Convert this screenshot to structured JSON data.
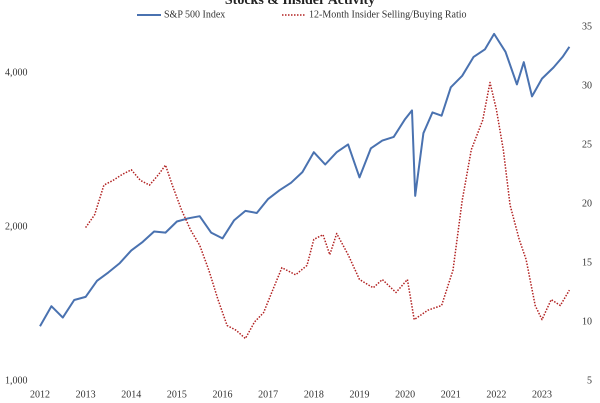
{
  "chart_data": {
    "type": "line",
    "title": "Stocks & Insider Activity",
    "xlim": [
      2011.9,
      2023.7
    ],
    "xticks": [
      2012,
      2013,
      2014,
      2015,
      2016,
      2017,
      2018,
      2019,
      2020,
      2021,
      2022,
      2023
    ],
    "ylim": [
      1000,
      4920
    ],
    "log_y": true,
    "yticks": [
      {
        "value": 1000,
        "label": "1,000"
      },
      {
        "value": 2000,
        "label": "2,000"
      },
      {
        "value": 4000,
        "label": "4,000"
      }
    ],
    "y2lim": [
      5,
      35
    ],
    "y2ticks": [
      5,
      10,
      15,
      20,
      25,
      30,
      35
    ],
    "grid": false,
    "series": [
      {
        "name": "S&P 500 Index",
        "color": "#4a72b0",
        "style": "solid",
        "x": [
          2012.0,
          2012.25,
          2012.5,
          2012.75,
          2013.0,
          2013.25,
          2013.5,
          2013.75,
          2014.0,
          2014.25,
          2014.5,
          2014.75,
          2015.0,
          2015.25,
          2015.5,
          2015.75,
          2016.0,
          2016.25,
          2016.5,
          2016.75,
          2017.0,
          2017.25,
          2017.5,
          2017.75,
          2018.0,
          2018.25,
          2018.5,
          2018.75,
          2019.0,
          2019.25,
          2019.5,
          2019.75,
          2020.0,
          2020.15,
          2020.22,
          2020.4,
          2020.6,
          2020.8,
          2021.0,
          2021.25,
          2021.5,
          2021.75,
          2021.95,
          2022.2,
          2022.45,
          2022.6,
          2022.78,
          2023.0,
          2023.25,
          2023.45,
          2023.6
        ],
        "values": [
          1280,
          1400,
          1330,
          1440,
          1460,
          1570,
          1630,
          1700,
          1800,
          1870,
          1960,
          1950,
          2050,
          2080,
          2100,
          1950,
          1900,
          2060,
          2150,
          2130,
          2270,
          2360,
          2440,
          2560,
          2800,
          2650,
          2800,
          2900,
          2500,
          2850,
          2950,
          3000,
          3250,
          3380,
          2300,
          3050,
          3350,
          3300,
          3750,
          3950,
          4300,
          4450,
          4770,
          4400,
          3800,
          4200,
          3600,
          3900,
          4100,
          4300,
          4500
        ]
      },
      {
        "name": "12-Month Insider Selling/Buying Ratio",
        "color": "#b22222",
        "style": "dotted",
        "axis": "y2",
        "x": [
          2013.0,
          2013.2,
          2013.4,
          2013.6,
          2013.8,
          2014.0,
          2014.2,
          2014.4,
          2014.6,
          2014.75,
          2014.9,
          2015.1,
          2015.3,
          2015.5,
          2015.7,
          2015.9,
          2016.1,
          2016.3,
          2016.5,
          2016.7,
          2016.9,
          2017.1,
          2017.3,
          2017.6,
          2017.85,
          2018.0,
          2018.2,
          2018.35,
          2018.5,
          2018.75,
          2019.0,
          2019.3,
          2019.5,
          2019.8,
          2020.05,
          2020.2,
          2020.5,
          2020.8,
          2021.05,
          2021.25,
          2021.45,
          2021.7,
          2021.86,
          2022.0,
          2022.15,
          2022.3,
          2022.5,
          2022.65,
          2022.85,
          2023.0,
          2023.2,
          2023.4,
          2023.6
        ],
        "values": [
          18.0,
          19.1,
          21.6,
          22.0,
          22.5,
          22.9,
          22.0,
          21.6,
          22.5,
          23.3,
          21.6,
          19.5,
          17.8,
          16.5,
          14.4,
          11.9,
          9.7,
          9.3,
          8.6,
          10.0,
          10.8,
          12.7,
          14.6,
          14.0,
          14.8,
          17.0,
          17.4,
          15.7,
          17.5,
          15.7,
          13.6,
          12.9,
          13.6,
          12.5,
          13.6,
          10.2,
          11.0,
          11.4,
          14.4,
          20.3,
          24.6,
          27.1,
          30.3,
          28.0,
          24.6,
          19.9,
          17.0,
          15.3,
          11.4,
          10.2,
          11.9,
          11.4,
          12.7
        ]
      }
    ]
  }
}
